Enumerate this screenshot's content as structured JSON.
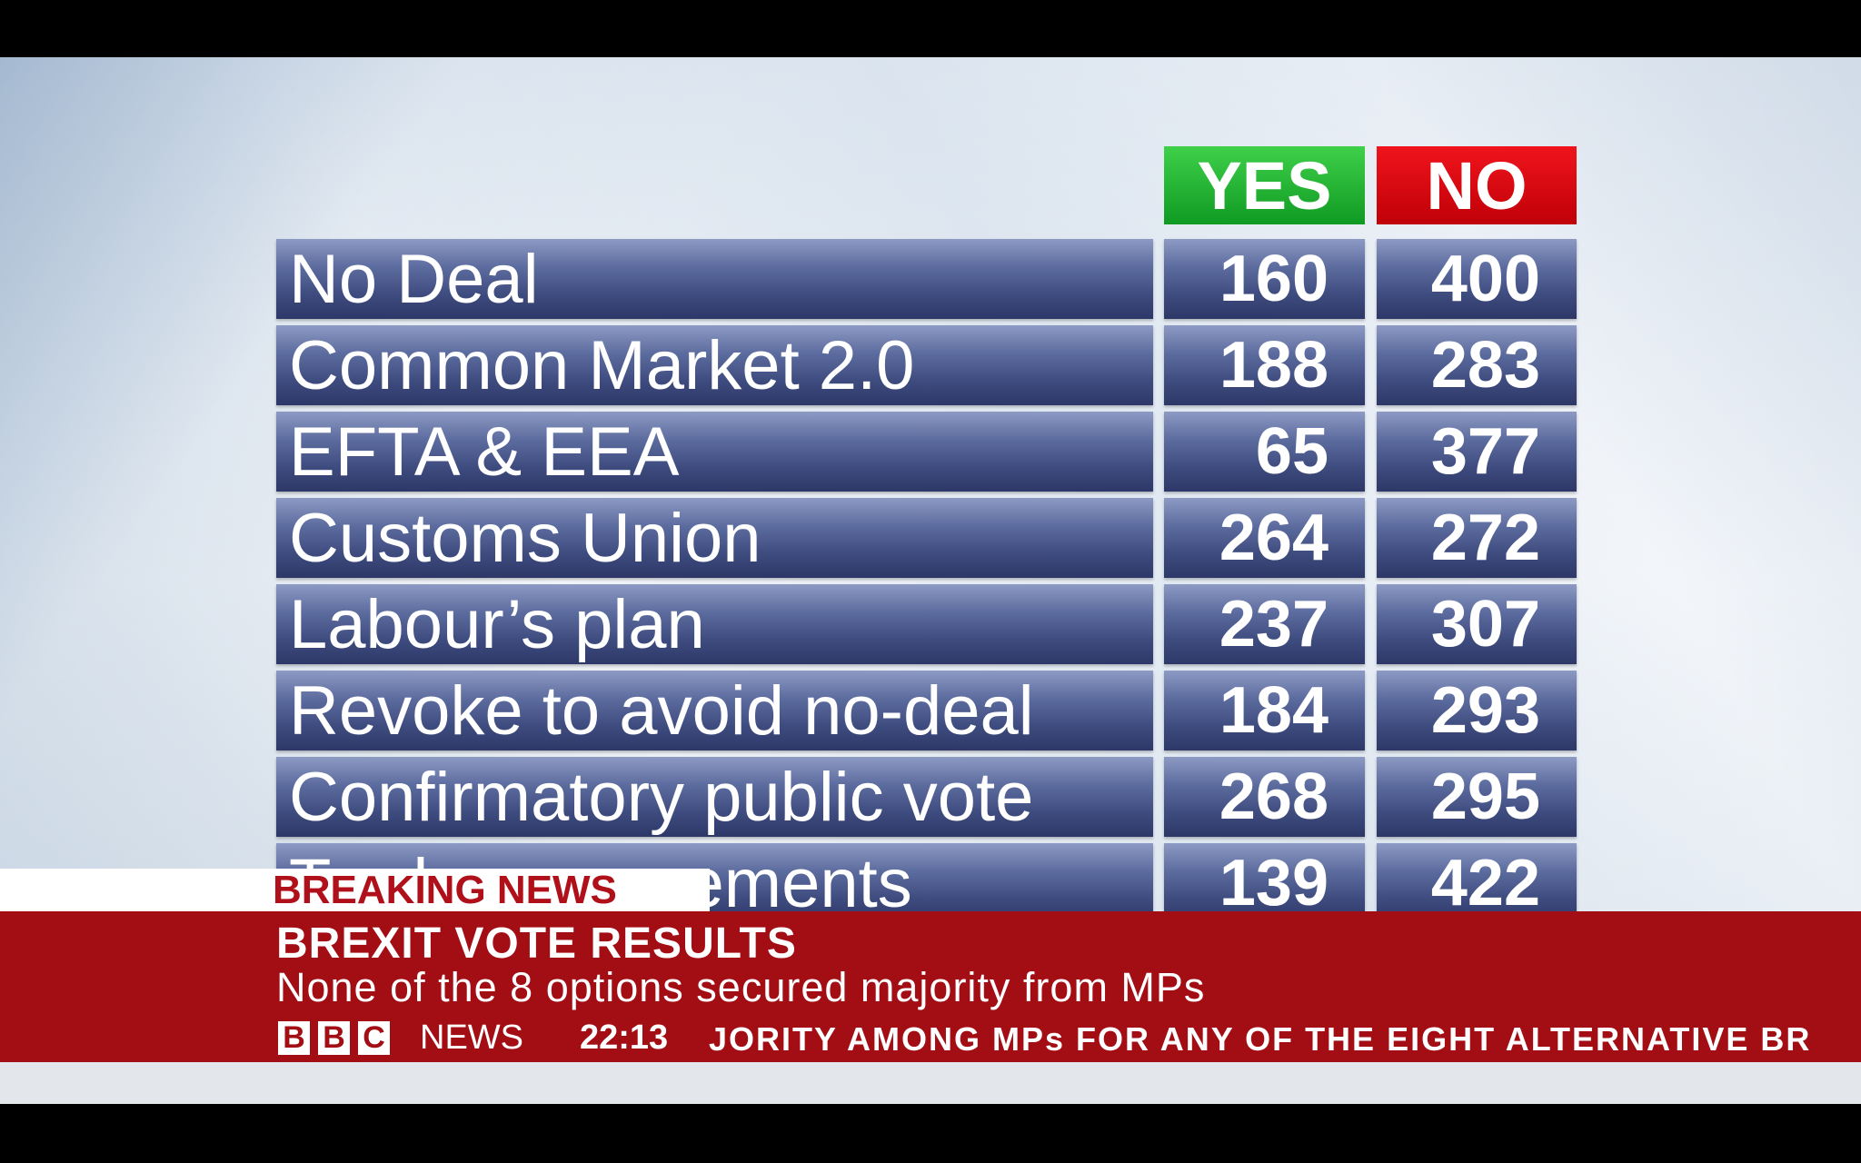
{
  "table": {
    "header": {
      "yes": "YES",
      "no": "NO"
    },
    "rows": [
      {
        "label": "No Deal",
        "yes": 160,
        "no": 400
      },
      {
        "label": "Common Market 2.0",
        "yes": 188,
        "no": 283
      },
      {
        "label": "EFTA  & EEA",
        "yes": 65,
        "no": 377
      },
      {
        "label": "Customs Union",
        "yes": 264,
        "no": 272
      },
      {
        "label": "Labour’s plan",
        "yes": 237,
        "no": 307
      },
      {
        "label": "Revoke to avoid no-deal",
        "yes": 184,
        "no": 293
      },
      {
        "label": "Confirmatory public vote",
        "yes": 268,
        "no": 295
      },
      {
        "label": "Trade arrangements",
        "yes": 139,
        "no": 422
      }
    ]
  },
  "banner": {
    "breaking": "BREAKING NEWS",
    "headline": "BREXIT VOTE RESULTS",
    "subline": "None of the 8 options secured majority from MPs",
    "logo": [
      "B",
      "B",
      "C"
    ],
    "news": "NEWS",
    "time": "22:13",
    "ticker": "JORITY AMONG MPs FOR ANY OF THE EIGHT ALTERNATIVE BR"
  }
}
